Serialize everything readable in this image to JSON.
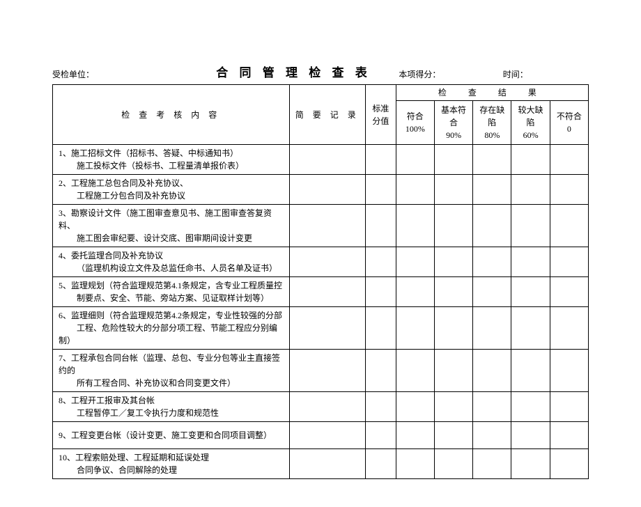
{
  "header": {
    "inspected_unit_label": "受检单位：",
    "title": "合 同 管 理 检 查 表",
    "score_label": "本项得分：",
    "time_label": "时间："
  },
  "columns": {
    "content": "检 查 考 核 内 容",
    "record": "简 要 记 录",
    "standard": "标准分值",
    "result_group": "检 查 结 果",
    "r1_a": "符合",
    "r1_b": "100%",
    "r2_a": "基本符合",
    "r2_b": "90%",
    "r3_a": "存在缺陷",
    "r3_b": "80%",
    "r4_a": "较大缺陷",
    "r4_b": "60%",
    "r5_a": "不符合",
    "r5_b": "0"
  },
  "rows": [
    {
      "line1": "1、施工招标文件（招标书、答疑、中标通知书）",
      "line2": "施工投标文件（投标书、工程量清单报价表）"
    },
    {
      "line1": "2、工程施工总包合同及补充协议、",
      "line2": "工程施工分包合同及补充协议"
    },
    {
      "line1": "3、勘察设计文件（施工图审查意见书、施工图审查答复资料、",
      "line2": "施工图会审纪要、设计交底、图审期间设计变更"
    },
    {
      "line1": "4、委托监理合同及补充协议",
      "line2": "（监理机构设立文件及总监任命书、人员名单及证书）"
    },
    {
      "line1": "5、监理规划（符合监理规范第4.1条规定，含专业工程质量控",
      "line2": "制要点、安全、节能、旁站方案、见证取样计划等）"
    },
    {
      "line1": "6、监理细则（符合监理规范第4.2条规定，专业性较强的分部",
      "line2": "工程、危险性较大的分部分项工程、节能工程应分别编制）"
    },
    {
      "line1": "7、工程承包合同台帐（监理、总包、专业分包等业主直接签约的",
      "line2": "所有工程合同、补充协议和合同变更文件）"
    },
    {
      "line1": "8、工程开工报审及其台帐",
      "line2": "工程暂停工／复工令执行力度和规范性"
    },
    {
      "line1": "9、工程变更台帐（设计变更、施工变更和合同项目调整）",
      "line2": null
    },
    {
      "line1": "10、工程索赔处理、工程延期和延误处理",
      "line2": "合同争议、合同解除的处理"
    }
  ],
  "style": {
    "text_color": "#000000",
    "bg_color": "#ffffff",
    "border_color": "#000000",
    "body_fontsize": 12,
    "title_fontsize": 17
  }
}
